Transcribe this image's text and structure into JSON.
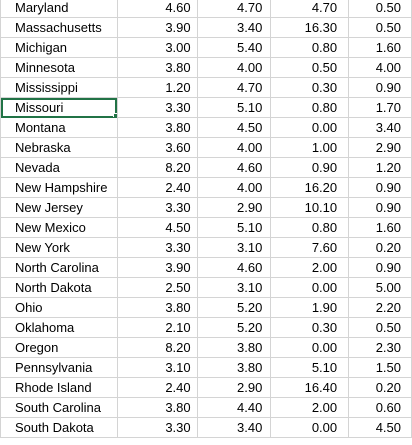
{
  "sheet": {
    "rows": [
      {
        "state": "Maryland",
        "c1": "4.60",
        "c2": "4.70",
        "c3": "4.70",
        "c4": "0.50"
      },
      {
        "state": "Massachusetts",
        "c1": "3.90",
        "c2": "3.40",
        "c3": "16.30",
        "c4": "0.50"
      },
      {
        "state": "Michigan",
        "c1": "3.00",
        "c2": "5.40",
        "c3": "0.80",
        "c4": "1.60"
      },
      {
        "state": "Minnesota",
        "c1": "3.80",
        "c2": "4.00",
        "c3": "0.50",
        "c4": "4.00"
      },
      {
        "state": "Mississippi",
        "c1": "1.20",
        "c2": "4.70",
        "c3": "0.30",
        "c4": "0.90"
      },
      {
        "state": "Missouri",
        "c1": "3.30",
        "c2": "5.10",
        "c3": "0.80",
        "c4": "1.70"
      },
      {
        "state": "Montana",
        "c1": "3.80",
        "c2": "4.50",
        "c3": "0.00",
        "c4": "3.40"
      },
      {
        "state": "Nebraska",
        "c1": "3.60",
        "c2": "4.00",
        "c3": "1.00",
        "c4": "2.90"
      },
      {
        "state": "Nevada",
        "c1": "8.20",
        "c2": "4.60",
        "c3": "0.90",
        "c4": "1.20"
      },
      {
        "state": "New Hampshire",
        "c1": "2.40",
        "c2": "4.00",
        "c3": "16.20",
        "c4": "0.90"
      },
      {
        "state": "New Jersey",
        "c1": "3.30",
        "c2": "2.90",
        "c3": "10.10",
        "c4": "0.90"
      },
      {
        "state": "New Mexico",
        "c1": "4.50",
        "c2": "5.10",
        "c3": "0.80",
        "c4": "1.60"
      },
      {
        "state": "New York",
        "c1": "3.30",
        "c2": "3.10",
        "c3": "7.60",
        "c4": "0.20"
      },
      {
        "state": "North Carolina",
        "c1": "3.90",
        "c2": "4.60",
        "c3": "2.00",
        "c4": "0.90"
      },
      {
        "state": "North Dakota",
        "c1": "2.50",
        "c2": "3.10",
        "c3": "0.00",
        "c4": "5.00"
      },
      {
        "state": "Ohio",
        "c1": "3.80",
        "c2": "5.20",
        "c3": "1.90",
        "c4": "2.20"
      },
      {
        "state": "Oklahoma",
        "c1": "2.10",
        "c2": "5.20",
        "c3": "0.30",
        "c4": "0.50"
      },
      {
        "state": "Oregon",
        "c1": "8.20",
        "c2": "3.80",
        "c3": "0.00",
        "c4": "2.30"
      },
      {
        "state": "Pennsylvania",
        "c1": "3.10",
        "c2": "3.80",
        "c3": "5.10",
        "c4": "1.50"
      },
      {
        "state": "Rhode Island",
        "c1": "2.40",
        "c2": "2.90",
        "c3": "16.40",
        "c4": "0.20"
      },
      {
        "state": "South Carolina",
        "c1": "3.80",
        "c2": "4.40",
        "c3": "2.00",
        "c4": "0.60"
      },
      {
        "state": "South Dakota",
        "c1": "3.30",
        "c2": "3.40",
        "c3": "0.00",
        "c4": "4.50"
      }
    ],
    "selected_cell": "Missouri",
    "selection_color": "#217346",
    "gridline_color": "#d4d4d4"
  }
}
